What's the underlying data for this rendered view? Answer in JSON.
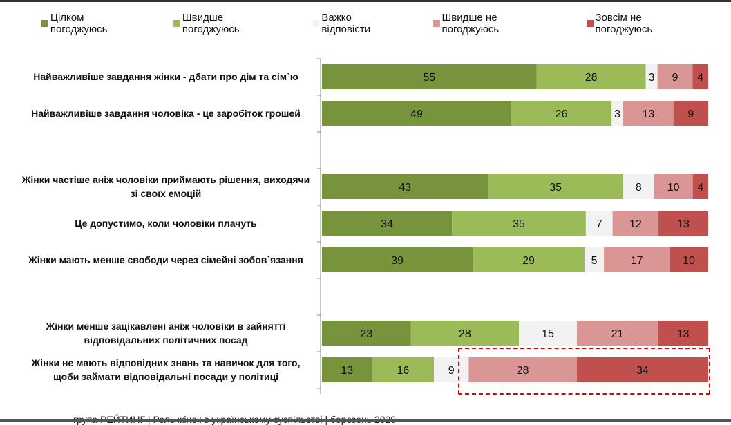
{
  "chart_data": {
    "type": "bar",
    "orientation": "horizontal",
    "stacked": true,
    "legend_position": "top",
    "categories": [
      "Найважливіше завдання жінки - дбати про дім та сім`ю",
      "Найважливіше завдання чоловіка - це заробіток грошей",
      "Жінки частіше аніж чоловіки приймають рішення, виходячи зі своїх емоцій",
      "Це допустимо, коли чоловіки плачуть",
      "Жінки мають менше свободи через сімейні зобов`язання",
      "Жінки менше зацікавлені аніж чоловіки в зайнятті відповідальних політичних посад",
      "Жінки не мають відповідних знань та навичок для того, щоби займати відповідальні посади у політиці"
    ],
    "series": [
      {
        "name": "Цілком погоджуюсь",
        "color": "#77933c",
        "values": [
          55,
          49,
          43,
          34,
          39,
          23,
          13
        ]
      },
      {
        "name": "Швидше погоджуюсь",
        "color": "#9bbb59",
        "values": [
          28,
          26,
          35,
          35,
          29,
          28,
          16
        ]
      },
      {
        "name": "Важко відповісти",
        "color": "#f2f2f2",
        "values": [
          3,
          3,
          8,
          7,
          5,
          15,
          9
        ]
      },
      {
        "name": "Швидше не погоджуюсь",
        "color": "#d99694",
        "values": [
          9,
          13,
          10,
          12,
          17,
          21,
          28
        ]
      },
      {
        "name": "Зовсім не погоджуюсь",
        "color": "#c0504d",
        "values": [
          4,
          9,
          4,
          13,
          10,
          13,
          34
        ]
      }
    ],
    "highlight": {
      "row": 6,
      "series": [
        3,
        4
      ],
      "color": "#e00000"
    }
  },
  "footer": "група РЕЙТИНГ | Роль жінок в українському суспільстві | березень 2020"
}
